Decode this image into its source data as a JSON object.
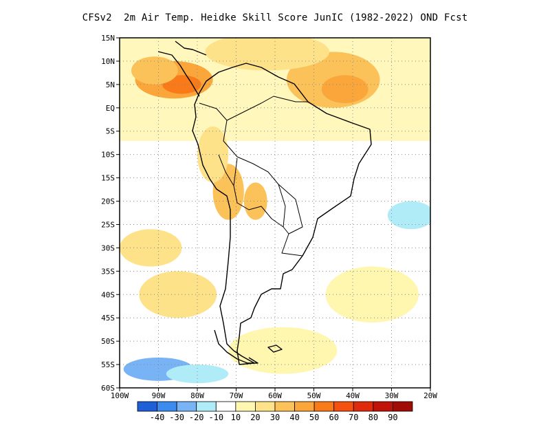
{
  "title": "CFSv2  2m Air Temp. Heidke Skill Score JunIC (1982-2022) OND Fcst",
  "map": {
    "lon_range": [
      -100,
      -20
    ],
    "lat_range": [
      -60,
      15
    ],
    "lat_ticks": [
      {
        "v": 15,
        "t": "15N"
      },
      {
        "v": 10,
        "t": "10N"
      },
      {
        "v": 5,
        "t": "5N"
      },
      {
        "v": 0,
        "t": "EQ"
      },
      {
        "v": -5,
        "t": "5S"
      },
      {
        "v": -10,
        "t": "10S"
      },
      {
        "v": -15,
        "t": "15S"
      },
      {
        "v": -20,
        "t": "20S"
      },
      {
        "v": -25,
        "t": "25S"
      },
      {
        "v": -30,
        "t": "30S"
      },
      {
        "v": -35,
        "t": "35S"
      },
      {
        "v": -40,
        "t": "40S"
      },
      {
        "v": -45,
        "t": "45S"
      },
      {
        "v": -50,
        "t": "50S"
      },
      {
        "v": -55,
        "t": "55S"
      },
      {
        "v": -60,
        "t": "60S"
      }
    ],
    "lon_ticks": [
      {
        "v": -100,
        "t": "100W"
      },
      {
        "v": -90,
        "t": "90W"
      },
      {
        "v": -80,
        "t": "80W"
      },
      {
        "v": -70,
        "t": "70W"
      },
      {
        "v": -60,
        "t": "60W"
      },
      {
        "v": -50,
        "t": "50W"
      },
      {
        "v": -40,
        "t": "40W"
      },
      {
        "v": -30,
        "t": "30W"
      },
      {
        "v": -20,
        "t": "20W"
      }
    ]
  },
  "colorbar": {
    "colors": [
      "#1f5fd8",
      "#3c8cf0",
      "#78b4f5",
      "#b0ecf8",
      "#ffffff",
      "#fff6b0",
      "#fde28a",
      "#fcc25a",
      "#fba63a",
      "#f97a18",
      "#f45010",
      "#e02a0c",
      "#c01208",
      "#a00c06"
    ],
    "labels": [
      "-40",
      "-30",
      "-20",
      "-10",
      "10",
      "20",
      "30",
      "40",
      "50",
      "60",
      "70",
      "80",
      "90"
    ]
  },
  "blobs": [
    {
      "lon": -86,
      "lat": 6,
      "rx": 10,
      "ry": 4,
      "c": "#fba63a"
    },
    {
      "lon": -84,
      "lat": 5,
      "rx": 5,
      "ry": 2,
      "c": "#f97a18"
    },
    {
      "lon": -91,
      "lat": 8,
      "rx": 6,
      "ry": 3,
      "c": "#fcc25a"
    },
    {
      "lon": -45,
      "lat": 6,
      "rx": 12,
      "ry": 6,
      "c": "#fcc25a"
    },
    {
      "lon": -42,
      "lat": 4,
      "rx": 6,
      "ry": 3,
      "c": "#fba63a"
    },
    {
      "lon": -62,
      "lat": 12,
      "rx": 16,
      "ry": 4,
      "c": "#fde28a"
    },
    {
      "lon": -72,
      "lat": -18,
      "rx": 4,
      "ry": 6,
      "c": "#fcc25a"
    },
    {
      "lon": -65,
      "lat": -20,
      "rx": 3,
      "ry": 4,
      "c": "#fcc25a"
    },
    {
      "lon": -76,
      "lat": -10,
      "rx": 4,
      "ry": 6,
      "c": "#fde28a"
    },
    {
      "lon": -92,
      "lat": -30,
      "rx": 8,
      "ry": 4,
      "c": "#fde28a"
    },
    {
      "lon": -85,
      "lat": -40,
      "rx": 10,
      "ry": 5,
      "c": "#fde28a"
    },
    {
      "lon": -35,
      "lat": -40,
      "rx": 12,
      "ry": 6,
      "c": "#fff6b0"
    },
    {
      "lon": -25,
      "lat": -23,
      "rx": 6,
      "ry": 3,
      "c": "#b0ecf8"
    },
    {
      "lon": -90,
      "lat": -56,
      "rx": 9,
      "ry": 2.5,
      "c": "#78b4f5"
    },
    {
      "lon": -80,
      "lat": -57,
      "rx": 8,
      "ry": 2,
      "c": "#b0ecf8"
    },
    {
      "lon": -58,
      "lat": -52,
      "rx": 14,
      "ry": 5,
      "c": "#fff6b0"
    }
  ]
}
